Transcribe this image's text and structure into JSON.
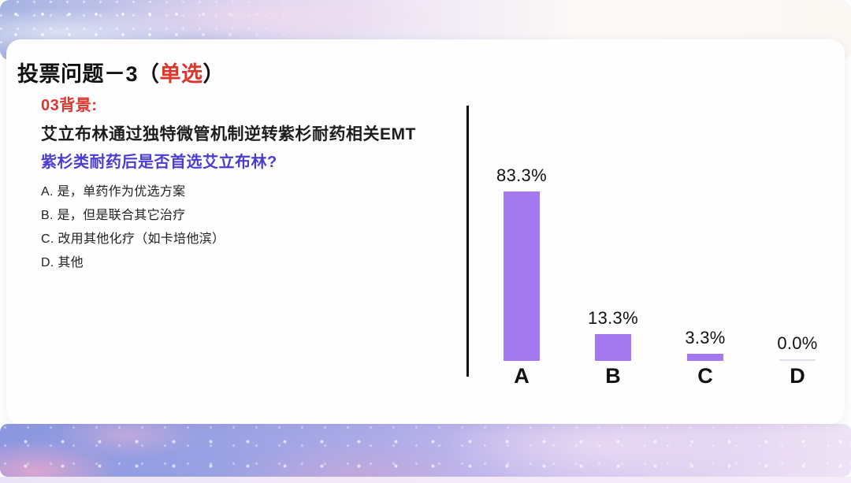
{
  "header": {
    "title_prefix": "投票问题－3（",
    "title_highlight": "单选",
    "title_suffix": "）"
  },
  "content": {
    "section_label": "03背景:",
    "background_line": "艾立布林通过独特微管机制逆转紫杉耐药相关EMT",
    "question": "紫杉类耐药后是否首选艾立布林?",
    "options": [
      "A. 是，单药作为优选方案",
      "B. 是，但是联合其它治疗",
      "C. 改用其他化疗（如卡培他滨）",
      "D. 其他"
    ]
  },
  "chart_data": {
    "type": "bar",
    "categories": [
      "A",
      "B",
      "C",
      "D"
    ],
    "values": [
      83.3,
      13.3,
      3.3,
      0.0
    ],
    "value_labels": [
      "83.3%",
      "13.3%",
      "3.3%",
      "0.0%"
    ],
    "ylim": [
      0,
      100
    ],
    "bar_color": "#a478ee",
    "axis_style": "single-left-vertical-line",
    "grid": false,
    "legend": false
  },
  "colors": {
    "accent_red": "#d8372d",
    "question_purple": "#4b3dd2",
    "bar_purple": "#a478ee",
    "banner_blue": "#8c97e0",
    "banner_pink": "#eee3f6"
  }
}
